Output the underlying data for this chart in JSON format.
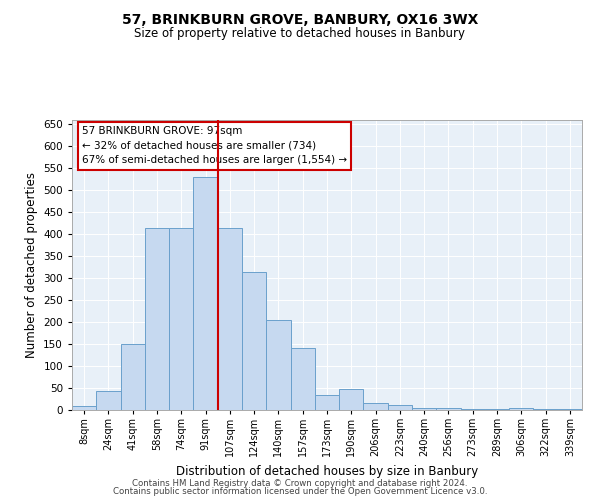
{
  "title": "57, BRINKBURN GROVE, BANBURY, OX16 3WX",
  "subtitle": "Size of property relative to detached houses in Banbury",
  "xlabel": "Distribution of detached houses by size in Banbury",
  "ylabel": "Number of detached properties",
  "categories": [
    "8sqm",
    "24sqm",
    "41sqm",
    "58sqm",
    "74sqm",
    "91sqm",
    "107sqm",
    "124sqm",
    "140sqm",
    "157sqm",
    "173sqm",
    "190sqm",
    "206sqm",
    "223sqm",
    "240sqm",
    "256sqm",
    "273sqm",
    "289sqm",
    "306sqm",
    "322sqm",
    "339sqm"
  ],
  "values": [
    8,
    44,
    150,
    415,
    415,
    530,
    415,
    315,
    205,
    140,
    35,
    48,
    15,
    12,
    5,
    5,
    3,
    2,
    5,
    2,
    3
  ],
  "bar_color": "#c6d9f0",
  "bar_edge_color": "#6aa0cc",
  "vline_color": "#cc0000",
  "annotation_text": "57 BRINKBURN GROVE: 97sqm\n← 32% of detached houses are smaller (734)\n67% of semi-detached houses are larger (1,554) →",
  "annotation_box_color": "#ffffff",
  "annotation_box_edge": "#cc0000",
  "ylim": [
    0,
    660
  ],
  "yticks": [
    0,
    50,
    100,
    150,
    200,
    250,
    300,
    350,
    400,
    450,
    500,
    550,
    600,
    650
  ],
  "background_color": "#e8f0f8",
  "footer1": "Contains HM Land Registry data © Crown copyright and database right 2024.",
  "footer2": "Contains public sector information licensed under the Open Government Licence v3.0."
}
